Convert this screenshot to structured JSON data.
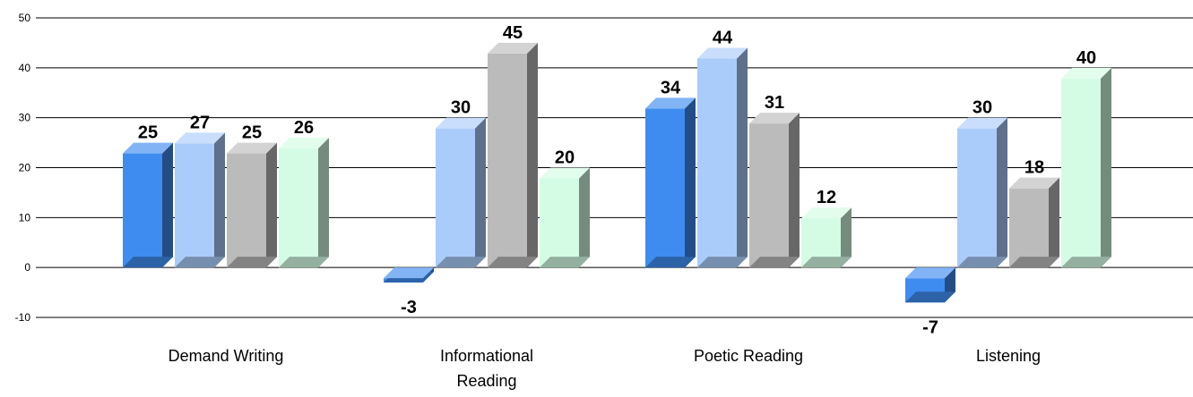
{
  "chart_data": {
    "type": "bar",
    "categories": [
      [
        "Demand Writing"
      ],
      [
        "Informational",
        "Reading"
      ],
      [
        "Poetic Reading"
      ],
      [
        "Listening"
      ]
    ],
    "series": [
      {
        "values": [
          25,
          -3,
          34,
          -7
        ],
        "color": "#3F8CF0"
      },
      {
        "values": [
          27,
          30,
          44,
          30
        ],
        "color": "#AACCFA"
      },
      {
        "values": [
          25,
          45,
          31,
          18
        ],
        "color": "#BBBBBB"
      },
      {
        "values": [
          26,
          20,
          12,
          40
        ],
        "color": "#D4FCE4"
      }
    ],
    "yticks": [
      "50",
      "40",
      "30",
      "20",
      "10",
      "0",
      "-10"
    ],
    "ylim": [
      -10,
      50
    ],
    "grid": true,
    "legend": "none",
    "data_labels": true
  }
}
